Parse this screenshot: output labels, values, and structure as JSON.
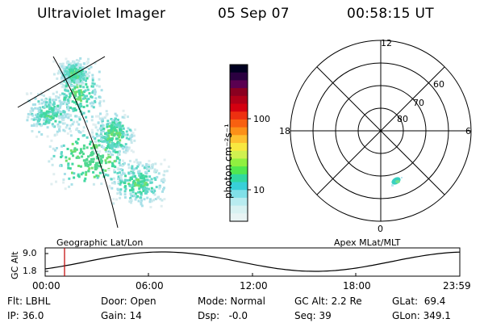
{
  "header": {
    "title": "Ultraviolet Imager",
    "date": "05 Sep 07",
    "time": "00:58:15 UT"
  },
  "geo_panel": {
    "label": "Geographic Lat/Lon"
  },
  "colorbar": {
    "unit_label": "photon cm⁻²s⁻¹",
    "ticks": [
      {
        "value": 100,
        "label": "100"
      },
      {
        "value": 10,
        "label": "10"
      }
    ],
    "colors": [
      "#000020",
      "#2a0040",
      "#5a0050",
      "#8a0020",
      "#b00018",
      "#d40010",
      "#ee3010",
      "#f86010",
      "#fc9018",
      "#fec030",
      "#f8e840",
      "#d0f050",
      "#90f040",
      "#50e850",
      "#30d8a0",
      "#38d0d8",
      "#80e0e8",
      "#b8ecf0",
      "#d8f2f2",
      "#e8f4f4"
    ]
  },
  "polar_plot": {
    "label": "Apex MLat/MLT",
    "mlt_labels": {
      "top": "12",
      "right": "6",
      "bottom": "0",
      "left": "18"
    },
    "lat_labels": [
      "60",
      "70",
      "80"
    ]
  },
  "orbit_panel": {
    "ylabel": "GC Alt",
    "yticks": [
      "9.0",
      "1.8"
    ],
    "xticks": [
      "00:00",
      "06:00",
      "12:00",
      "18:00",
      "23:59"
    ]
  },
  "footer": {
    "filter": "Flt: LBHL",
    "ip": "IP: 36.0",
    "door": "Door: Open",
    "gain": "Gain: 14",
    "mode": "Mode: Normal",
    "dsp": "Dsp:   -0.0",
    "gc_alt": "GC Alt: 2.2 Re",
    "seq": "Seq: 39",
    "glat": "GLat:  69.4",
    "glon": "GLon: 349.1"
  }
}
